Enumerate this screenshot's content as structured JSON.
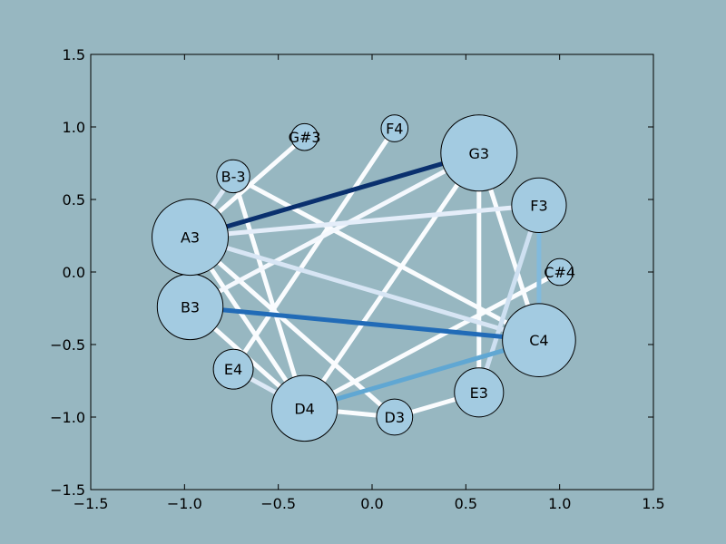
{
  "colors": {
    "figure_bg": "#97b7c1",
    "node_fill": "#a3cbe1",
    "node_stroke": "#000000",
    "axes_frame": "#000000"
  },
  "chart_data": {
    "type": "network",
    "title": "",
    "xlabel": "",
    "ylabel": "",
    "xlim": [
      -1.5,
      1.5
    ],
    "ylim": [
      -1.5,
      1.5
    ],
    "xticks": [
      "−1.5",
      "−1.0",
      "−0.5",
      "0.0",
      "0.5",
      "1.0",
      "1.5"
    ],
    "yticks": [
      "−1.5",
      "−1.0",
      "−0.5",
      "0.0",
      "0.5",
      "1.0",
      "1.5"
    ],
    "xtick_values": [
      -1.5,
      -1.0,
      -0.5,
      0.0,
      0.5,
      1.0,
      1.5
    ],
    "ytick_values": [
      -1.5,
      -1.0,
      -0.5,
      0.0,
      0.5,
      1.0,
      1.5
    ],
    "nodes": [
      {
        "id": "G3",
        "label": "G3",
        "x": 0.57,
        "y": 0.82,
        "size": 1.0
      },
      {
        "id": "F3",
        "label": "F3",
        "x": 0.89,
        "y": 0.46,
        "size": 0.65
      },
      {
        "id": "C#4",
        "label": "C#4",
        "x": 1.0,
        "y": 0.0,
        "size": 0.2
      },
      {
        "id": "C4",
        "label": "C4",
        "x": 0.89,
        "y": -0.47,
        "size": 0.95
      },
      {
        "id": "E3",
        "label": "E3",
        "x": 0.57,
        "y": -0.83,
        "size": 0.56
      },
      {
        "id": "D3",
        "label": "D3",
        "x": 0.12,
        "y": -1.0,
        "size": 0.35
      },
      {
        "id": "D4",
        "label": "D4",
        "x": -0.36,
        "y": -0.94,
        "size": 0.83
      },
      {
        "id": "E4",
        "label": "E4",
        "x": -0.74,
        "y": -0.67,
        "size": 0.41
      },
      {
        "id": "B3",
        "label": "B3",
        "x": -0.97,
        "y": -0.24,
        "size": 0.83
      },
      {
        "id": "A3",
        "label": "A3",
        "x": -0.97,
        "y": 0.24,
        "size": 1.05
      },
      {
        "id": "B-3",
        "label": "B-3",
        "x": -0.74,
        "y": 0.66,
        "size": 0.3
      },
      {
        "id": "G#3",
        "label": "G#3",
        "x": -0.36,
        "y": 0.93,
        "size": 0.2
      },
      {
        "id": "F4",
        "label": "F4",
        "x": 0.12,
        "y": 0.99,
        "size": 0.2
      }
    ],
    "edges": [
      {
        "source": "A3",
        "target": "G3",
        "weight": 1.0
      },
      {
        "source": "B3",
        "target": "C4",
        "weight": 0.75
      },
      {
        "source": "D4",
        "target": "C4",
        "weight": 0.5
      },
      {
        "source": "F3",
        "target": "C4",
        "weight": 0.4
      },
      {
        "source": "E3",
        "target": "F3",
        "weight": 0.22
      },
      {
        "source": "A3",
        "target": "C4",
        "weight": 0.18
      },
      {
        "source": "A3",
        "target": "F3",
        "weight": 0.12
      },
      {
        "source": "A3",
        "target": "B-3",
        "weight": 0.15
      },
      {
        "source": "E4",
        "target": "D4",
        "weight": 0.15
      },
      {
        "source": "B3",
        "target": "G3",
        "weight": 0.05
      },
      {
        "source": "B-3",
        "target": "C4",
        "weight": 0.02
      },
      {
        "source": "B-3",
        "target": "D4",
        "weight": 0.02
      },
      {
        "source": "A3",
        "target": "G#3",
        "weight": 0.02
      },
      {
        "source": "E4",
        "target": "F4",
        "weight": 0.02
      },
      {
        "source": "G3",
        "target": "C4",
        "weight": 0.02
      },
      {
        "source": "G3",
        "target": "E3",
        "weight": 0.02
      },
      {
        "source": "D4",
        "target": "G3",
        "weight": 0.02
      },
      {
        "source": "D4",
        "target": "C#4",
        "weight": 0.02
      },
      {
        "source": "A3",
        "target": "D3",
        "weight": 0.02
      },
      {
        "source": "B3",
        "target": "D4",
        "weight": 0.02
      },
      {
        "source": "A3",
        "target": "D4",
        "weight": 0.02
      },
      {
        "source": "D3",
        "target": "E3",
        "weight": 0.02
      },
      {
        "source": "D4",
        "target": "D3",
        "weight": 0.02
      }
    ]
  }
}
